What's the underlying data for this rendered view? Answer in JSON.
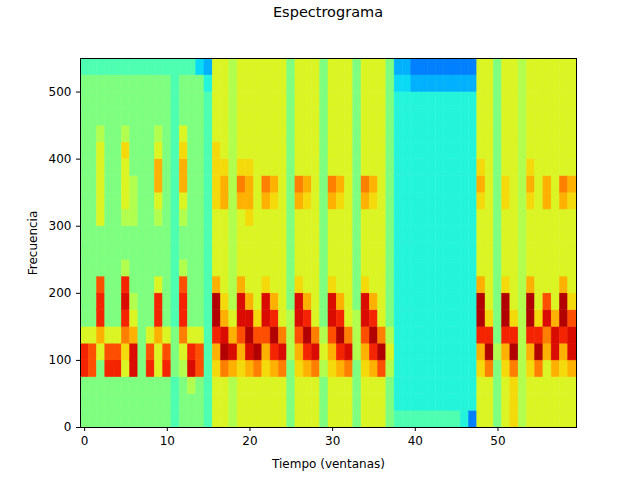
{
  "chart_data": {
    "type": "heatmap",
    "title": "Espectrograma",
    "x_label": "Tiempo (ventanas)",
    "y_label": "Frecuencia",
    "xlim": [
      -0.5,
      59.5
    ],
    "xticks": [
      0,
      10,
      20,
      30,
      40,
      50
    ],
    "ylim": [
      0,
      550
    ],
    "yticks": [
      0,
      100,
      200,
      300,
      400,
      500
    ],
    "zlim": [
      0,
      10
    ],
    "x": [
      0,
      1,
      2,
      3,
      4,
      5,
      6,
      7,
      8,
      9,
      10,
      11,
      12,
      13,
      14,
      15,
      16,
      17,
      18,
      19,
      20,
      21,
      22,
      23,
      24,
      25,
      26,
      27,
      28,
      29,
      30,
      31,
      32,
      33,
      34,
      35,
      36,
      37,
      38,
      39,
      40,
      41,
      42,
      43,
      44,
      45,
      46,
      47,
      48,
      49,
      50,
      51,
      52,
      53,
      54,
      55,
      56,
      57,
      58,
      59
    ],
    "y_edges": [
      0,
      25,
      50,
      75,
      100,
      125,
      150,
      175,
      200,
      225,
      250,
      275,
      300,
      325,
      350,
      375,
      400,
      425,
      450,
      475,
      500,
      525,
      550
    ],
    "z": [
      [
        5,
        5,
        5,
        8.5,
        8.5,
        6,
        5,
        5,
        5,
        5,
        5,
        5,
        5,
        5,
        5,
        5,
        5,
        5,
        5,
        5,
        5,
        4.5
      ],
      [
        5,
        5,
        5,
        8,
        8,
        6,
        5,
        5,
        5,
        5,
        5,
        5,
        5,
        5,
        5,
        5,
        5,
        5,
        5,
        5,
        5,
        4.5
      ],
      [
        5,
        5,
        5,
        5,
        6,
        7,
        8.5,
        8.5,
        8,
        5,
        5,
        5,
        6,
        6,
        6,
        6,
        6,
        5.5,
        5,
        5,
        5,
        4.5
      ],
      [
        5,
        5,
        5,
        8.5,
        8,
        6,
        5,
        5,
        5,
        5,
        5,
        5,
        5,
        5,
        5,
        5,
        5,
        5,
        5,
        5,
        5,
        4.5
      ],
      [
        5,
        5,
        5,
        8.5,
        8,
        6,
        5,
        5,
        5,
        5,
        5,
        5,
        5,
        5,
        5,
        5,
        5,
        5,
        5,
        5,
        5,
        4.5
      ],
      [
        5,
        5,
        5,
        6,
        6.5,
        7.5,
        8.5,
        9,
        8.5,
        5.5,
        5,
        5,
        5.5,
        6,
        6,
        6,
        6.5,
        5.5,
        5,
        5,
        5,
        4.5
      ],
      [
        5,
        5,
        5,
        9,
        9,
        7,
        6,
        5.5,
        5,
        5,
        5,
        5,
        5.5,
        5.5,
        5.5,
        5,
        5,
        5,
        5,
        5,
        5,
        4.5
      ],
      [
        5,
        5,
        5,
        5,
        5,
        5,
        5,
        5,
        5,
        5,
        5,
        5,
        5,
        5,
        5,
        5,
        5,
        5,
        5,
        5,
        5,
        4.5
      ],
      [
        5,
        5,
        5,
        8.5,
        8,
        6,
        5,
        5,
        5,
        5,
        5,
        5,
        5,
        5,
        5,
        5,
        5,
        5,
        5,
        5,
        5,
        4.5
      ],
      [
        5,
        5,
        5,
        6,
        6,
        7,
        8.5,
        8.5,
        6,
        5,
        5,
        5,
        5.5,
        6,
        7,
        7,
        6,
        5.5,
        5,
        5,
        5,
        4.5
      ],
      [
        5,
        5,
        5,
        8.5,
        8,
        6,
        5,
        5,
        5,
        5,
        5,
        5,
        5,
        5,
        5,
        5,
        5,
        5,
        5,
        5,
        5,
        4.5
      ],
      [
        4.5,
        4.5,
        4.5,
        5,
        5,
        5,
        4.5,
        4.5,
        4.5,
        4.5,
        4.5,
        4.5,
        4.5,
        4.5,
        4.5,
        4.5,
        4.5,
        4.5,
        4.5,
        4.5,
        4.5,
        4.5
      ],
      [
        5,
        5,
        5,
        5.5,
        6,
        7.5,
        8.5,
        8.5,
        8,
        5.5,
        5,
        5,
        5.5,
        6,
        7,
        7,
        6.5,
        6,
        5,
        5,
        5,
        4.5
      ],
      [
        5,
        5,
        5.5,
        9,
        8.5,
        6,
        5,
        5,
        5,
        5,
        5,
        5,
        5,
        5,
        5,
        5,
        5,
        5,
        5,
        5,
        5,
        4.5
      ],
      [
        5,
        5,
        5,
        8,
        8,
        6,
        5,
        5,
        5,
        5,
        5,
        5,
        5,
        5,
        5,
        5,
        5,
        5,
        5,
        5,
        5,
        3.5
      ],
      [
        4.5,
        4.5,
        4.5,
        4.5,
        4.5,
        4.5,
        4.5,
        4.5,
        4.5,
        4.5,
        4.5,
        4.5,
        4.5,
        4.5,
        4.5,
        4.5,
        4.5,
        4.5,
        4.5,
        4.5,
        4,
        3
      ],
      [
        6,
        6,
        6,
        6.5,
        7,
        8.5,
        9.5,
        9.5,
        7,
        6,
        6,
        6,
        6,
        6.5,
        6.5,
        6.5,
        6.5,
        6,
        6,
        6,
        6,
        6
      ],
      [
        6,
        6,
        6,
        7.5,
        9.5,
        9,
        7,
        6.5,
        6,
        6,
        6,
        6,
        6,
        7,
        7,
        6.5,
        6,
        6,
        6,
        6,
        6,
        6
      ],
      [
        5.5,
        5.5,
        5.5,
        7,
        9,
        7,
        6,
        5.5,
        5.5,
        5.5,
        5.5,
        5.5,
        5.5,
        5.5,
        5.5,
        5.5,
        5.5,
        5.5,
        5.5,
        5.5,
        5.5,
        5.5
      ],
      [
        6,
        6,
        6,
        6.5,
        7,
        8,
        9,
        9,
        7,
        6,
        6,
        6,
        6,
        7,
        7.5,
        6.5,
        6,
        6,
        6,
        6,
        6,
        6
      ],
      [
        6,
        6,
        6,
        7,
        9,
        9.5,
        9,
        7,
        6,
        6,
        6,
        6,
        6.5,
        7,
        7,
        6.5,
        6,
        6,
        6,
        6,
        6,
        6
      ],
      [
        6,
        6,
        6,
        7.5,
        9.5,
        8,
        6.5,
        6,
        6,
        6,
        6,
        6,
        6,
        6,
        6,
        6,
        6,
        6,
        6,
        6,
        6,
        6
      ],
      [
        6,
        6,
        6,
        6.5,
        7,
        8,
        9,
        9,
        6.5,
        6,
        6,
        6,
        6,
        7,
        7.5,
        6,
        6,
        6,
        6,
        6,
        6,
        6
      ],
      [
        6,
        6,
        6,
        7,
        8.5,
        9.5,
        8.5,
        7,
        6,
        6,
        6,
        6,
        6,
        6.5,
        7,
        6,
        6,
        6,
        6,
        6,
        6,
        6
      ],
      [
        6,
        6,
        6,
        7.5,
        9,
        7.5,
        6,
        6,
        6,
        6,
        6,
        6,
        6,
        6,
        6,
        6,
        6,
        6,
        6,
        6,
        6,
        6
      ],
      [
        5,
        5,
        5,
        5,
        5.5,
        5.5,
        5.5,
        5,
        5,
        5,
        5,
        5,
        5,
        5,
        5,
        5,
        5,
        5,
        5,
        5,
        5,
        5
      ],
      [
        6,
        6,
        6,
        6.5,
        7,
        8,
        9,
        9,
        6.5,
        6,
        6,
        6,
        6,
        7,
        7.5,
        6,
        6,
        6,
        6,
        6,
        6,
        6
      ],
      [
        6,
        6,
        6,
        7,
        8.5,
        9.5,
        8.5,
        7,
        6,
        6,
        6,
        6,
        6,
        6.5,
        7,
        6,
        6,
        6,
        6,
        6,
        6,
        6
      ],
      [
        6,
        6,
        6,
        7.5,
        9,
        7.5,
        6,
        6,
        6,
        6,
        6,
        6,
        6,
        6,
        6,
        6,
        6,
        6,
        6,
        6,
        6,
        6
      ],
      [
        5,
        5,
        5,
        5.5,
        6,
        5.5,
        5,
        5,
        5,
        5,
        5,
        5,
        5,
        5,
        5,
        5,
        5,
        5,
        5,
        5,
        5,
        5
      ],
      [
        6,
        6,
        6,
        6.5,
        7,
        8,
        9,
        9,
        6.5,
        6,
        6,
        6,
        6,
        7,
        7.5,
        6,
        6,
        6,
        6,
        6,
        6,
        6
      ],
      [
        6,
        6,
        6,
        7,
        8.5,
        9.5,
        8.5,
        7,
        6,
        6,
        6,
        6,
        6,
        6.5,
        7,
        6,
        6,
        6,
        6,
        6,
        6,
        6
      ],
      [
        6,
        6,
        6,
        7.5,
        9,
        7.5,
        6,
        6,
        6,
        6,
        6,
        6,
        6,
        6,
        6,
        6,
        6,
        6,
        6,
        6,
        6,
        6
      ],
      [
        5,
        5,
        5,
        5,
        5.5,
        5.5,
        5.5,
        5,
        5,
        5,
        5,
        5,
        5,
        5,
        5,
        5,
        5,
        5,
        5,
        5,
        5,
        5
      ],
      [
        6,
        6,
        6,
        6.5,
        7,
        8,
        9,
        9,
        6.5,
        6,
        6,
        6,
        6,
        7,
        7.5,
        6,
        6,
        6,
        6,
        6,
        6,
        6
      ],
      [
        6,
        6,
        6,
        7,
        8.5,
        9.5,
        8.5,
        7,
        6,
        6,
        6,
        6,
        6,
        6.5,
        7,
        6,
        6,
        6,
        6,
        6,
        6,
        6
      ],
      [
        6,
        6,
        6,
        8,
        9.5,
        7.5,
        6,
        6,
        6,
        6,
        6,
        6,
        6,
        6,
        6,
        6,
        6,
        6,
        6,
        6,
        6,
        6
      ],
      [
        5,
        5,
        5,
        5.5,
        6,
        5.5,
        5,
        5,
        5,
        5,
        5,
        5,
        5,
        5,
        5,
        5,
        5,
        5,
        5,
        5,
        5,
        5
      ],
      [
        4.5,
        4,
        4,
        4,
        4,
        4,
        4,
        4,
        4,
        4,
        4,
        4,
        4,
        4,
        4,
        4,
        4,
        4,
        4,
        4,
        3.5,
        3
      ],
      [
        4.5,
        4,
        4,
        4,
        4,
        4,
        4,
        4,
        4,
        4,
        4,
        4,
        4,
        4,
        4,
        4,
        4,
        4,
        4,
        4,
        3.5,
        3
      ],
      [
        4.5,
        4,
        4,
        4,
        4,
        4,
        4,
        4,
        4,
        4,
        4,
        4,
        4,
        4,
        4,
        4,
        4,
        4,
        4,
        4,
        3,
        2.5
      ],
      [
        4.5,
        4,
        4,
        4,
        4,
        4,
        4,
        4,
        4,
        4,
        4,
        4,
        4,
        4,
        4,
        4,
        4,
        4,
        4,
        4,
        3,
        2.5
      ],
      [
        4.5,
        4,
        4,
        4,
        4,
        4,
        4,
        4,
        4,
        4,
        4,
        4,
        4,
        4,
        4,
        4,
        4,
        4,
        4,
        4,
        3,
        2.5
      ],
      [
        4.5,
        4,
        4,
        4,
        4,
        4,
        4,
        4,
        4,
        4,
        4,
        4,
        4,
        4,
        4,
        4,
        4,
        4,
        4,
        4,
        3,
        2.5
      ],
      [
        4.5,
        4,
        4,
        4,
        4,
        4,
        4,
        4,
        4,
        4,
        4,
        4,
        4,
        4,
        4,
        4,
        4,
        4,
        4,
        4,
        3,
        2.5
      ],
      [
        4.5,
        4,
        4,
        4,
        4,
        4,
        4,
        4,
        4,
        4,
        4,
        4,
        4,
        4,
        4,
        4,
        4,
        4,
        4,
        4,
        3,
        2.5
      ],
      [
        4,
        4,
        4,
        4,
        4,
        4,
        4,
        4,
        4,
        4,
        4,
        4,
        4,
        4,
        4,
        4,
        4,
        4,
        4,
        4,
        3,
        2.5
      ],
      [
        2.5,
        4,
        4,
        4,
        4,
        4,
        4,
        4,
        4,
        4,
        4,
        4,
        4,
        4,
        4,
        4,
        4,
        4,
        4,
        4,
        3,
        2.5
      ],
      [
        6,
        6,
        6,
        6.5,
        7,
        8.5,
        9.5,
        9.5,
        7,
        6,
        6,
        6,
        6,
        6.5,
        7,
        6.5,
        6,
        6,
        6,
        6,
        6,
        6
      ],
      [
        6,
        6,
        6,
        7.5,
        9.5,
        8.5,
        6.5,
        6,
        6,
        6,
        6,
        6,
        6,
        6,
        6,
        6,
        6,
        6,
        6,
        6,
        6,
        6
      ],
      [
        5,
        5,
        5,
        5,
        5.5,
        5,
        5,
        5,
        5,
        5,
        5,
        5,
        5,
        5,
        5,
        5,
        5,
        5,
        5,
        5,
        5,
        5
      ],
      [
        6,
        6,
        6,
        6.5,
        7,
        8.5,
        9.5,
        9.5,
        6.5,
        6,
        6,
        6,
        6,
        6.5,
        6.5,
        6,
        6,
        6,
        6,
        6,
        6,
        6
      ],
      [
        6.5,
        6.5,
        6.5,
        7.5,
        9.5,
        8.5,
        6.5,
        6,
        6,
        6,
        6,
        6,
        6,
        6,
        6,
        6,
        6,
        6,
        6,
        6,
        6,
        6
      ],
      [
        5.5,
        5.5,
        5.5,
        5.5,
        5.5,
        5.5,
        5.5,
        5.5,
        5.5,
        5.5,
        5.5,
        5.5,
        5.5,
        5.5,
        5.5,
        5.5,
        5.5,
        5.5,
        5.5,
        5.5,
        5.5,
        5.5
      ],
      [
        6,
        6,
        6,
        6.5,
        7,
        8.5,
        9.5,
        9.5,
        7,
        6,
        6,
        6,
        6,
        6.5,
        7,
        6.5,
        6,
        6,
        6,
        6,
        6,
        6
      ],
      [
        6,
        6,
        6,
        7.5,
        9.5,
        8.5,
        6.5,
        6,
        6,
        6,
        6,
        6,
        6,
        6,
        6,
        6,
        6,
        6,
        6,
        6,
        6,
        6
      ],
      [
        6,
        6,
        6,
        6,
        7,
        7.5,
        9,
        8,
        6,
        6,
        6,
        6,
        6,
        7,
        7,
        6,
        6,
        6,
        6,
        6,
        6,
        6
      ],
      [
        6,
        6,
        6,
        7,
        9,
        9,
        7,
        6,
        6,
        6,
        6,
        6,
        6,
        6,
        6,
        6,
        6,
        6,
        6,
        6,
        6,
        6
      ],
      [
        6,
        6,
        6,
        6.5,
        7,
        8.5,
        9.5,
        9.5,
        7,
        6,
        6,
        6,
        6,
        7,
        7.5,
        6,
        6,
        6,
        6,
        6,
        6,
        6
      ],
      [
        6,
        6,
        6,
        7,
        9,
        9,
        8,
        6.5,
        6,
        6,
        6,
        6,
        6,
        6.5,
        7,
        6,
        6,
        6,
        6,
        6,
        6,
        6
      ]
    ]
  }
}
